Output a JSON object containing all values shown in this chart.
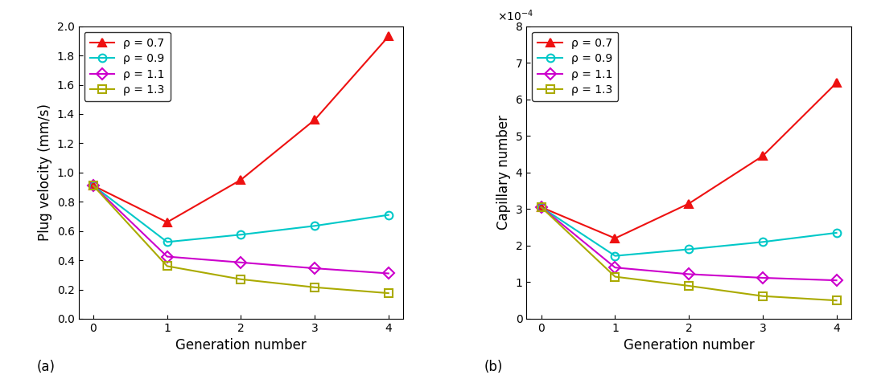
{
  "generations": [
    0,
    1,
    2,
    3,
    4
  ],
  "plot_a": {
    "ylabel": "Plug velocity (mm/s)",
    "xlabel": "Generation number",
    "label_a": "(a)",
    "ylim": [
      0,
      2.0
    ],
    "yticks": [
      0,
      0.2,
      0.4,
      0.6,
      0.8,
      1.0,
      1.2,
      1.4,
      1.6,
      1.8,
      2.0
    ],
    "series": [
      {
        "label": "ρ = 0.7",
        "color": "#EE1111",
        "marker": "^",
        "filled": true,
        "values": [
          0.91,
          0.66,
          0.95,
          1.36,
          1.93
        ]
      },
      {
        "label": "ρ = 0.9",
        "color": "#00C8C8",
        "marker": "o",
        "filled": false,
        "values": [
          0.91,
          0.525,
          0.575,
          0.635,
          0.71
        ]
      },
      {
        "label": "ρ = 1.1",
        "color": "#CC00CC",
        "marker": "D",
        "filled": false,
        "values": [
          0.91,
          0.425,
          0.385,
          0.345,
          0.31
        ]
      },
      {
        "label": "ρ = 1.3",
        "color": "#AAAA00",
        "marker": "s",
        "filled": false,
        "values": [
          0.91,
          0.36,
          0.27,
          0.215,
          0.175
        ]
      }
    ]
  },
  "plot_b": {
    "ylabel": "Capillary number",
    "xlabel": "Generation number",
    "label_b": "(b)",
    "ylim": [
      0,
      0.0008
    ],
    "yticks": [
      0,
      0.0001,
      0.0002,
      0.0003,
      0.0004,
      0.0005,
      0.0006,
      0.0007,
      0.0008
    ],
    "series": [
      {
        "label": "ρ = 0.7",
        "color": "#EE1111",
        "marker": "^",
        "filled": true,
        "values": [
          0.000305,
          0.00022,
          0.000315,
          0.000445,
          0.000645
        ]
      },
      {
        "label": "ρ = 0.9",
        "color": "#00C8C8",
        "marker": "o",
        "filled": false,
        "values": [
          0.000305,
          0.000172,
          0.00019,
          0.00021,
          0.000235
        ]
      },
      {
        "label": "ρ = 1.1",
        "color": "#CC00CC",
        "marker": "D",
        "filled": false,
        "values": [
          0.000305,
          0.00014,
          0.000122,
          0.000112,
          0.000105
        ]
      },
      {
        "label": "ρ = 1.3",
        "color": "#AAAA00",
        "marker": "s",
        "filled": false,
        "values": [
          0.000305,
          0.000115,
          9e-05,
          6.2e-05,
          5e-05
        ]
      }
    ]
  }
}
